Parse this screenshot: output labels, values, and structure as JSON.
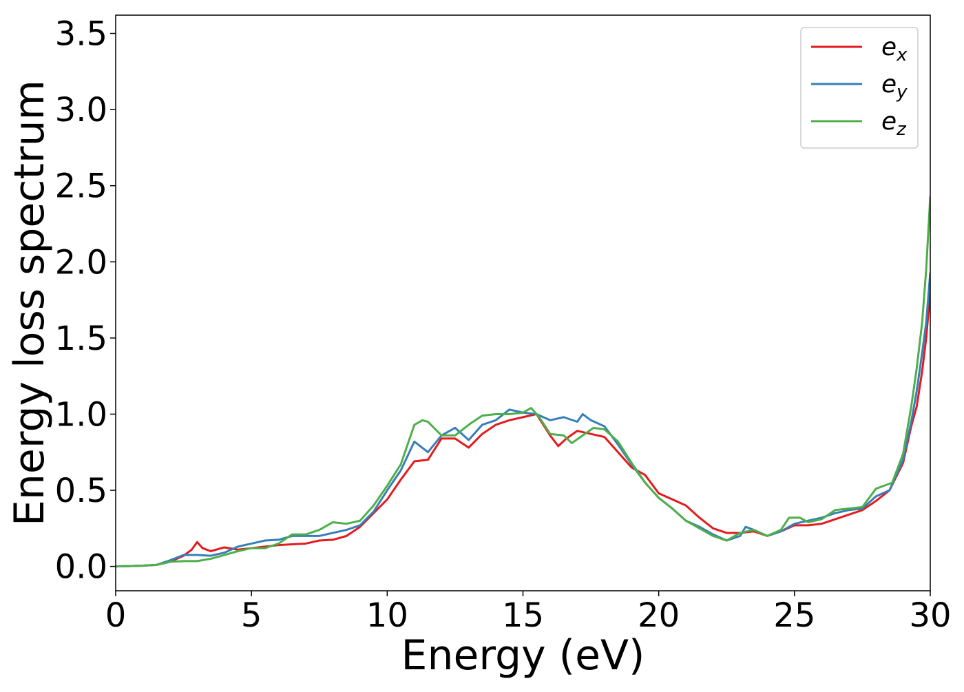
{
  "chart_data": {
    "type": "line",
    "title": "",
    "xlabel": "Energy (eV)",
    "ylabel": "Energy loss spectrum",
    "xlim": [
      0,
      30
    ],
    "ylim": [
      -0.16,
      3.62
    ],
    "xticks": [
      0,
      5,
      10,
      15,
      20,
      25,
      30
    ],
    "xtick_labels": [
      "0",
      "5",
      "10",
      "15",
      "20",
      "25",
      "30"
    ],
    "yticks": [
      0.0,
      0.5,
      1.0,
      1.5,
      2.0,
      2.5,
      3.0,
      3.5
    ],
    "ytick_labels": [
      "0.0",
      "0.5",
      "1.0",
      "1.5",
      "2.0",
      "2.5",
      "3.0",
      "3.5"
    ],
    "grid": false,
    "legend_position": "top-right",
    "series": [
      {
        "name": "e_x",
        "legend_base": "e",
        "legend_sub": "x",
        "color": "#e41a1c",
        "points": [
          [
            0,
            0.0
          ],
          [
            0.5,
            0.002
          ],
          [
            1.0,
            0.005
          ],
          [
            1.5,
            0.01
          ],
          [
            2.0,
            0.03
          ],
          [
            2.5,
            0.07
          ],
          [
            2.8,
            0.11
          ],
          [
            3.0,
            0.16
          ],
          [
            3.2,
            0.12
          ],
          [
            3.5,
            0.1
          ],
          [
            4.0,
            0.125
          ],
          [
            4.5,
            0.11
          ],
          [
            5.0,
            0.12
          ],
          [
            5.5,
            0.13
          ],
          [
            6.0,
            0.14
          ],
          [
            6.5,
            0.145
          ],
          [
            7.0,
            0.15
          ],
          [
            7.5,
            0.17
          ],
          [
            8.0,
            0.175
          ],
          [
            8.5,
            0.2
          ],
          [
            9.0,
            0.26
          ],
          [
            9.5,
            0.35
          ],
          [
            10.0,
            0.44
          ],
          [
            10.5,
            0.57
          ],
          [
            11.0,
            0.69
          ],
          [
            11.5,
            0.7
          ],
          [
            12.0,
            0.84
          ],
          [
            12.5,
            0.84
          ],
          [
            13.0,
            0.78
          ],
          [
            13.5,
            0.87
          ],
          [
            14.0,
            0.93
          ],
          [
            14.5,
            0.96
          ],
          [
            15.0,
            0.98
          ],
          [
            15.5,
            1.0
          ],
          [
            16.0,
            0.86
          ],
          [
            16.3,
            0.79
          ],
          [
            16.6,
            0.84
          ],
          [
            17.0,
            0.89
          ],
          [
            17.5,
            0.87
          ],
          [
            18.0,
            0.85
          ],
          [
            18.5,
            0.75
          ],
          [
            19.0,
            0.65
          ],
          [
            19.5,
            0.6
          ],
          [
            20.0,
            0.48
          ],
          [
            20.5,
            0.44
          ],
          [
            21.0,
            0.4
          ],
          [
            21.5,
            0.32
          ],
          [
            22.0,
            0.25
          ],
          [
            22.5,
            0.22
          ],
          [
            23.0,
            0.22
          ],
          [
            23.5,
            0.23
          ],
          [
            24.0,
            0.2
          ],
          [
            24.5,
            0.23
          ],
          [
            25.0,
            0.27
          ],
          [
            25.5,
            0.27
          ],
          [
            26.0,
            0.28
          ],
          [
            26.5,
            0.31
          ],
          [
            27.0,
            0.34
          ],
          [
            27.5,
            0.37
          ],
          [
            28.0,
            0.43
          ],
          [
            28.5,
            0.5
          ],
          [
            29.0,
            0.68
          ],
          [
            29.3,
            0.92
          ],
          [
            29.5,
            1.05
          ],
          [
            29.7,
            1.28
          ],
          [
            29.85,
            1.5
          ],
          [
            30.0,
            1.8
          ]
        ]
      },
      {
        "name": "e_y",
        "legend_base": "e",
        "legend_sub": "y",
        "color": "#377eb8",
        "points": [
          [
            0,
            0.0
          ],
          [
            0.5,
            0.002
          ],
          [
            1.0,
            0.005
          ],
          [
            1.5,
            0.01
          ],
          [
            2.0,
            0.04
          ],
          [
            2.5,
            0.075
          ],
          [
            3.0,
            0.075
          ],
          [
            3.5,
            0.07
          ],
          [
            4.0,
            0.09
          ],
          [
            4.5,
            0.13
          ],
          [
            5.0,
            0.15
          ],
          [
            5.5,
            0.17
          ],
          [
            6.0,
            0.175
          ],
          [
            6.5,
            0.2
          ],
          [
            7.0,
            0.2
          ],
          [
            7.5,
            0.2
          ],
          [
            8.0,
            0.22
          ],
          [
            8.5,
            0.24
          ],
          [
            9.0,
            0.27
          ],
          [
            9.5,
            0.36
          ],
          [
            10.0,
            0.5
          ],
          [
            10.5,
            0.63
          ],
          [
            11.0,
            0.82
          ],
          [
            11.5,
            0.75
          ],
          [
            12.0,
            0.86
          ],
          [
            12.5,
            0.91
          ],
          [
            13.0,
            0.83
          ],
          [
            13.5,
            0.93
          ],
          [
            14.0,
            0.96
          ],
          [
            14.5,
            1.03
          ],
          [
            15.0,
            1.01
          ],
          [
            15.5,
            1.0
          ],
          [
            16.0,
            0.96
          ],
          [
            16.5,
            0.98
          ],
          [
            17.0,
            0.95
          ],
          [
            17.2,
            1.0
          ],
          [
            17.5,
            0.96
          ],
          [
            18.0,
            0.92
          ],
          [
            18.5,
            0.8
          ],
          [
            19.0,
            0.67
          ],
          [
            19.5,
            0.55
          ],
          [
            20.0,
            0.45
          ],
          [
            20.5,
            0.38
          ],
          [
            21.0,
            0.3
          ],
          [
            21.5,
            0.26
          ],
          [
            22.0,
            0.21
          ],
          [
            22.5,
            0.17
          ],
          [
            23.0,
            0.2
          ],
          [
            23.2,
            0.26
          ],
          [
            23.5,
            0.24
          ],
          [
            24.0,
            0.2
          ],
          [
            24.5,
            0.23
          ],
          [
            25.0,
            0.28
          ],
          [
            25.5,
            0.3
          ],
          [
            26.0,
            0.32
          ],
          [
            26.5,
            0.35
          ],
          [
            27.0,
            0.37
          ],
          [
            27.5,
            0.38
          ],
          [
            28.0,
            0.46
          ],
          [
            28.5,
            0.5
          ],
          [
            29.0,
            0.7
          ],
          [
            29.3,
            0.95
          ],
          [
            29.5,
            1.15
          ],
          [
            29.7,
            1.4
          ],
          [
            29.85,
            1.6
          ],
          [
            30.0,
            1.93
          ]
        ]
      },
      {
        "name": "e_z",
        "legend_base": "e",
        "legend_sub": "z",
        "color": "#4daf4a",
        "points": [
          [
            0,
            0.0
          ],
          [
            0.5,
            0.002
          ],
          [
            1.0,
            0.005
          ],
          [
            1.5,
            0.01
          ],
          [
            2.0,
            0.03
          ],
          [
            2.5,
            0.035
          ],
          [
            3.0,
            0.035
          ],
          [
            3.5,
            0.05
          ],
          [
            4.0,
            0.075
          ],
          [
            4.5,
            0.1
          ],
          [
            5.0,
            0.12
          ],
          [
            5.5,
            0.12
          ],
          [
            6.0,
            0.15
          ],
          [
            6.5,
            0.21
          ],
          [
            7.0,
            0.21
          ],
          [
            7.5,
            0.24
          ],
          [
            8.0,
            0.29
          ],
          [
            8.5,
            0.28
          ],
          [
            9.0,
            0.3
          ],
          [
            9.5,
            0.4
          ],
          [
            10.0,
            0.53
          ],
          [
            10.5,
            0.67
          ],
          [
            11.0,
            0.93
          ],
          [
            11.3,
            0.96
          ],
          [
            11.5,
            0.95
          ],
          [
            12.0,
            0.86
          ],
          [
            12.5,
            0.86
          ],
          [
            13.0,
            0.93
          ],
          [
            13.5,
            0.99
          ],
          [
            14.0,
            1.0
          ],
          [
            14.5,
            1.0
          ],
          [
            15.0,
            1.01
          ],
          [
            15.3,
            1.04
          ],
          [
            15.6,
            0.98
          ],
          [
            16.0,
            0.87
          ],
          [
            16.5,
            0.86
          ],
          [
            16.8,
            0.81
          ],
          [
            17.2,
            0.86
          ],
          [
            17.6,
            0.91
          ],
          [
            18.0,
            0.9
          ],
          [
            18.5,
            0.82
          ],
          [
            19.0,
            0.68
          ],
          [
            19.5,
            0.55
          ],
          [
            20.0,
            0.45
          ],
          [
            20.5,
            0.38
          ],
          [
            21.0,
            0.3
          ],
          [
            21.5,
            0.25
          ],
          [
            22.0,
            0.2
          ],
          [
            22.5,
            0.17
          ],
          [
            23.0,
            0.22
          ],
          [
            23.5,
            0.24
          ],
          [
            24.0,
            0.2
          ],
          [
            24.5,
            0.24
          ],
          [
            24.8,
            0.32
          ],
          [
            25.2,
            0.32
          ],
          [
            25.5,
            0.29
          ],
          [
            26.0,
            0.31
          ],
          [
            26.5,
            0.37
          ],
          [
            27.0,
            0.38
          ],
          [
            27.5,
            0.39
          ],
          [
            28.0,
            0.51
          ],
          [
            28.3,
            0.53
          ],
          [
            28.6,
            0.55
          ],
          [
            29.0,
            0.74
          ],
          [
            29.3,
            1.05
          ],
          [
            29.5,
            1.3
          ],
          [
            29.7,
            1.6
          ],
          [
            29.85,
            1.95
          ],
          [
            30.0,
            2.43
          ]
        ]
      }
    ]
  }
}
